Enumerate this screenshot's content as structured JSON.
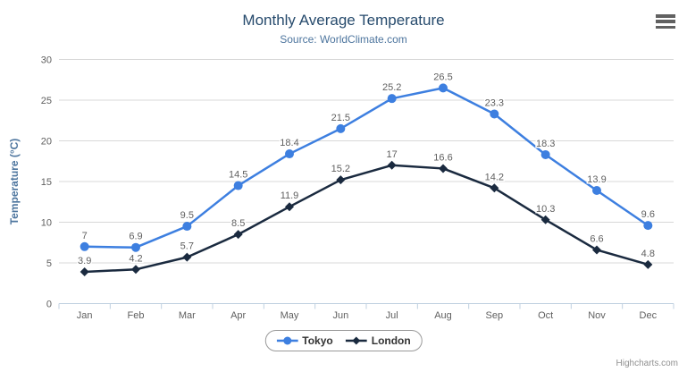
{
  "header": {
    "title": "Monthly Average Temperature",
    "subtitle": "Source: WorldClimate.com"
  },
  "chart_data": {
    "type": "line",
    "title": "Monthly Average Temperature",
    "subtitle": "Source: WorldClimate.com",
    "categories": [
      "Jan",
      "Feb",
      "Mar",
      "Apr",
      "May",
      "Jun",
      "Jul",
      "Aug",
      "Sep",
      "Oct",
      "Nov",
      "Dec"
    ],
    "series": [
      {
        "name": "Tokyo",
        "color": "#3d7fe0",
        "marker": "circle",
        "values": [
          7,
          6.9,
          9.5,
          14.5,
          18.4,
          21.5,
          25.2,
          26.5,
          23.3,
          18.3,
          13.9,
          9.6
        ]
      },
      {
        "name": "London",
        "color": "#1a2a3f",
        "marker": "diamond",
        "values": [
          3.9,
          4.2,
          5.7,
          8.5,
          11.9,
          15.2,
          17,
          16.6,
          14.2,
          10.3,
          6.6,
          4.8
        ]
      }
    ],
    "xlabel": "",
    "ylabel": "Temperature (°C)",
    "ylim": [
      0,
      30
    ],
    "ytick_step": 5,
    "yticks": [
      0,
      5,
      10,
      15,
      20,
      25,
      30
    ],
    "grid": true,
    "data_labels": true,
    "legend_position": "bottom"
  },
  "export_menu": {
    "icon": "hamburger-icon"
  },
  "credits": {
    "text": "Highcharts.com"
  }
}
